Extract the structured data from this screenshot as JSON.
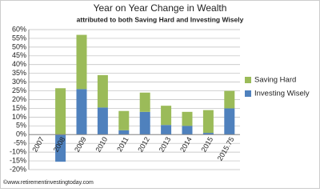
{
  "chart_data": {
    "type": "stacked-bar",
    "title": "Year on Year Change in Wealth",
    "subtitle": "attributed to both Saving Hard and Investing Wisely",
    "categories": [
      "2007",
      "2008",
      "2009",
      "2010",
      "2011",
      "2012",
      "2013",
      "2014",
      "2015",
      "2015.75"
    ],
    "series": [
      {
        "name": "Investing Wisely",
        "color": "#4f81bd",
        "values": [
          0,
          -15.5,
          26,
          15.5,
          2.5,
          13,
          5.5,
          5,
          1,
          15
        ]
      },
      {
        "name": "Saving Hard",
        "color": "#9bbb59",
        "values": [
          0,
          26.5,
          31,
          18.5,
          11,
          11,
          11,
          8,
          13,
          10
        ]
      }
    ],
    "ylim": [
      -20,
      60
    ],
    "yticks": [
      {
        "value": -20,
        "label": "-20%"
      },
      {
        "value": -15,
        "label": "-15%"
      },
      {
        "value": -10,
        "label": "-10%"
      },
      {
        "value": -5,
        "label": "-5%"
      },
      {
        "value": 0,
        "label": "0%"
      },
      {
        "value": 5,
        "label": "5%"
      },
      {
        "value": 10,
        "label": "10%"
      },
      {
        "value": 15,
        "label": "15%"
      },
      {
        "value": 20,
        "label": "20%"
      },
      {
        "value": 25,
        "label": "25%"
      },
      {
        "value": 30,
        "label": "30%"
      },
      {
        "value": 35,
        "label": "35%"
      },
      {
        "value": 40,
        "label": "40%"
      },
      {
        "value": 45,
        "label": "45%"
      },
      {
        "value": 50,
        "label": "50%"
      },
      {
        "value": 55,
        "label": "55%"
      },
      {
        "value": 60,
        "label": "60%"
      }
    ],
    "grid": true,
    "legend": "right",
    "watermark": "©www.retirementinvestingtoday.com"
  }
}
